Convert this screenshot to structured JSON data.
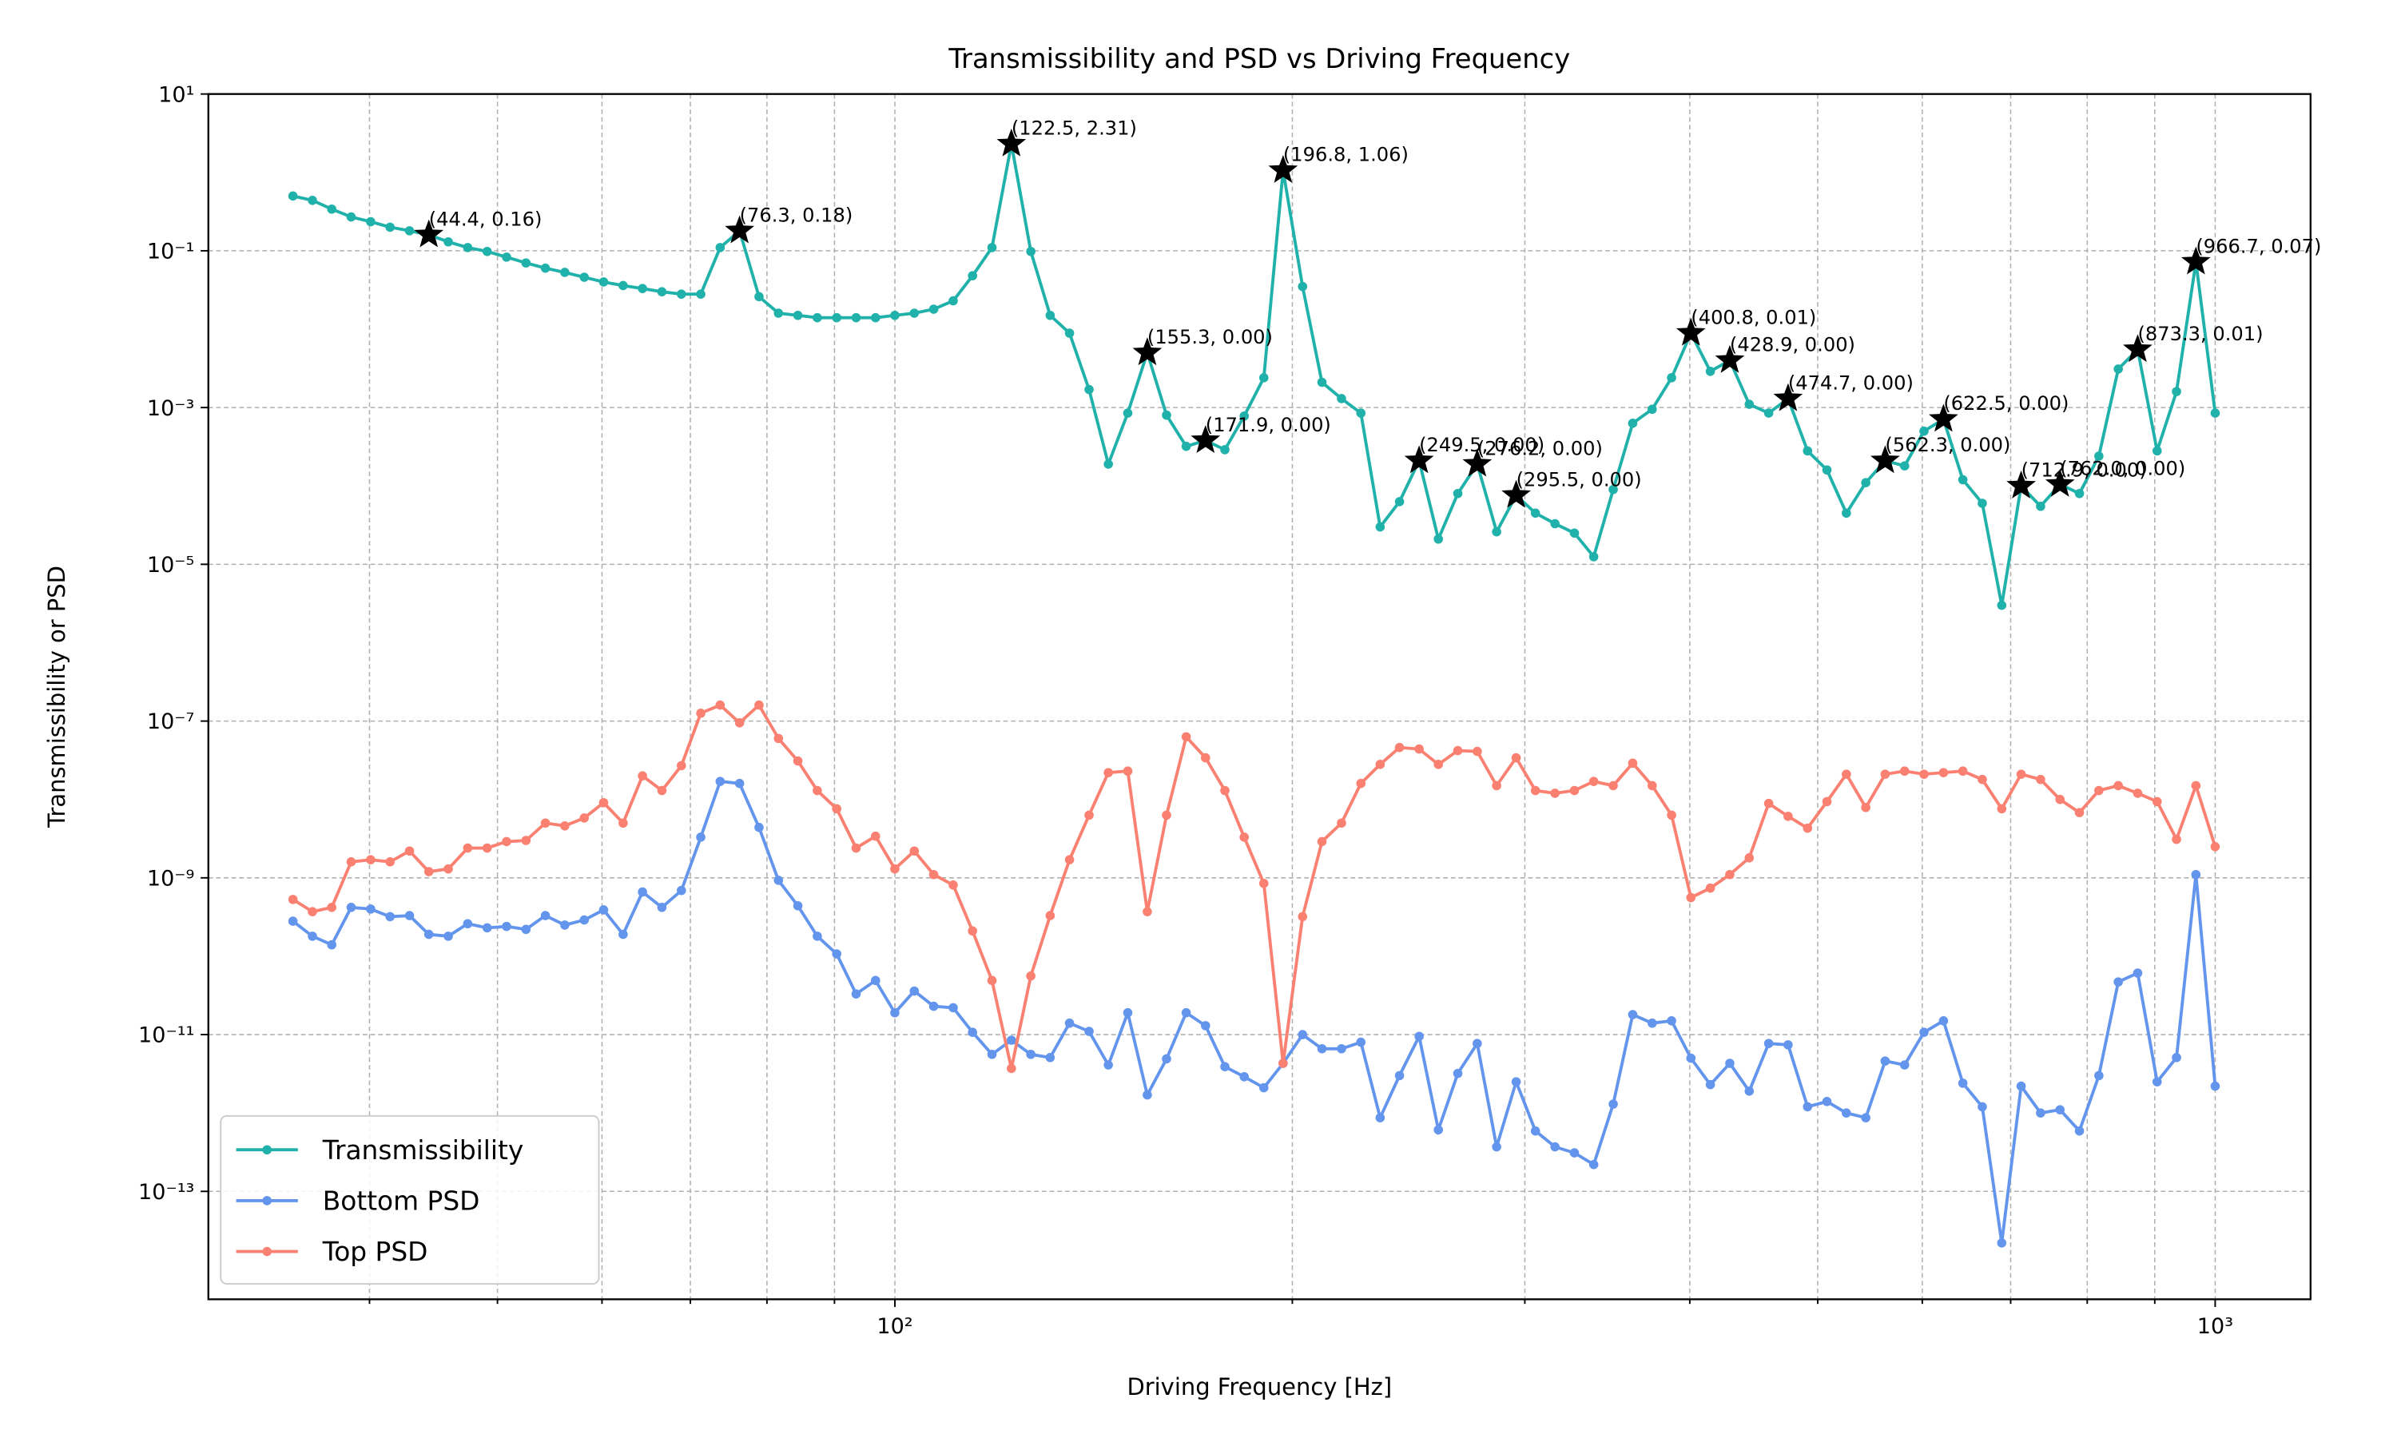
{
  "chart_data": {
    "type": "line",
    "title": "Transmissibility and PSD vs Driving Frequency",
    "xlabel": "Driving Frequency [Hz]",
    "ylabel": "Transmissibility or PSD",
    "xscale": "log",
    "yscale": "log",
    "xlim": [
      30.2,
      1181
    ],
    "ylim": [
      4.2e-15,
      10
    ],
    "xticks": [
      {
        "value": 100,
        "label": "10²"
      },
      {
        "value": 1000,
        "label": "10³"
      }
    ],
    "xminorticks": [
      40,
      50,
      60,
      70,
      80,
      90,
      200,
      300,
      400,
      500,
      600,
      700,
      800,
      900
    ],
    "yticks": [
      {
        "value": 10,
        "label": "10¹"
      },
      {
        "value": 0.1,
        "label": "10⁻¹"
      },
      {
        "value": 0.001,
        "label": "10⁻³"
      },
      {
        "value": 1e-05,
        "label": "10⁻⁵"
      },
      {
        "value": 1e-07,
        "label": "10⁻⁷"
      },
      {
        "value": 1e-09,
        "label": "10⁻⁹"
      },
      {
        "value": 1e-11,
        "label": "10⁻¹¹"
      },
      {
        "value": 1e-13,
        "label": "10⁻¹³"
      }
    ],
    "grid": true,
    "legend": "lower left",
    "x": [
      35.0,
      36.21,
      37.45,
      38.74,
      40.08,
      41.46,
      42.89,
      44.36,
      45.89,
      47.47,
      49.11,
      50.8,
      52.55,
      54.36,
      56.23,
      58.17,
      60.17,
      62.25,
      64.39,
      66.61,
      68.91,
      71.28,
      73.73,
      76.27,
      78.9,
      81.62,
      84.43,
      87.34,
      90.35,
      93.46,
      96.68,
      99.99,
      103.44,
      107.0,
      110.7,
      114.5,
      118.45,
      122.53,
      126.75,
      131.1,
      135.6,
      140.3,
      145.1,
      150.1,
      155.3,
      160.6,
      166.2,
      171.9,
      177.8,
      183.9,
      190.3,
      196.8,
      203.6,
      210.6,
      217.9,
      225.4,
      233.1,
      241.1,
      249.5,
      258.0,
      266.9,
      276.1,
      285.6,
      295.5,
      305.6,
      316.2,
      327.1,
      338.3,
      350.0,
      362.1,
      374.6,
      387.5,
      400.8,
      414.6,
      428.9,
      443.7,
      459.0,
      474.8,
      491.2,
      508.1,
      525.6,
      543.7,
      562.4,
      581.8,
      601.8,
      622.6,
      644.0,
      666.2,
      689.2,
      712.9,
      737.5,
      762.9,
      789.2,
      816.4,
      844.5,
      873.6,
      903.7,
      934.8,
      967.0,
      1000.0
    ],
    "series": [
      {
        "name": "Transmissibility",
        "color": "#20b2aa",
        "values": [
          0.5,
          0.44,
          0.34,
          0.27,
          0.235,
          0.2,
          0.18,
          0.16,
          0.13,
          0.11,
          0.098,
          0.083,
          0.07,
          0.06,
          0.053,
          0.046,
          0.04,
          0.036,
          0.033,
          0.03,
          0.028,
          0.028,
          0.11,
          0.18,
          0.026,
          0.016,
          0.015,
          0.014,
          0.014,
          0.014,
          0.014,
          0.015,
          0.016,
          0.018,
          0.023,
          0.048,
          0.11,
          2.31,
          0.098,
          0.015,
          0.0089,
          0.0017,
          0.00019,
          0.00085,
          0.005,
          0.0008,
          0.00032,
          0.00038,
          0.00029,
          0.00078,
          0.0024,
          1.06,
          0.035,
          0.0021,
          0.0013,
          0.00085,
          3e-05,
          6.3e-05,
          0.00021,
          2.1e-05,
          8e-05,
          0.00019,
          2.6e-05,
          7.6e-05,
          4.5e-05,
          3.3e-05,
          2.5e-05,
          1.25e-05,
          9e-05,
          0.00063,
          0.00095,
          0.0024,
          0.0089,
          0.0029,
          0.004,
          0.0011,
          0.00085,
          0.0013,
          0.00028,
          0.00016,
          4.5e-05,
          0.00011,
          0.00021,
          0.00018,
          0.0005,
          0.00071,
          0.00012,
          6e-05,
          3e-06,
          0.0001,
          5.5e-05,
          0.000105,
          8e-05,
          0.00024,
          0.0031,
          0.0055,
          0.00028,
          0.0016,
          0.072,
          0.00085
        ]
      },
      {
        "name": "Bottom PSD",
        "color": "#6495ed",
        "values": [
          2.8e-10,
          1.8e-10,
          1.4e-10,
          4.2e-10,
          4e-10,
          3.2e-10,
          3.3e-10,
          1.9e-10,
          1.8e-10,
          2.6e-10,
          2.3e-10,
          2.4e-10,
          2.2e-10,
          3.3e-10,
          2.5e-10,
          2.9e-10,
          3.9e-10,
          1.9e-10,
          6.6e-10,
          4.2e-10,
          6.9e-10,
          3.3e-09,
          1.7e-08,
          1.6e-08,
          4.4e-09,
          9.3e-10,
          4.4e-10,
          1.8e-10,
          1.07e-10,
          3.3e-11,
          4.9e-11,
          1.9e-11,
          3.6e-11,
          2.3e-11,
          2.2e-11,
          1.07e-11,
          5.6e-12,
          8.5e-12,
          5.6e-12,
          5.1e-12,
          1.4e-11,
          1.1e-11,
          4.1e-12,
          1.9e-11,
          1.7e-12,
          4.9e-12,
          1.9e-11,
          1.3e-11,
          3.9e-12,
          2.9e-12,
          2.1e-12,
          4.3e-12,
          1e-11,
          6.6e-12,
          6.6e-12,
          8e-12,
          8.7e-13,
          3e-12,
          9.5e-12,
          6.1e-13,
          3.2e-12,
          7.7e-12,
          3.7e-13,
          2.5e-12,
          5.9e-13,
          3.7e-13,
          3.1e-13,
          2.2e-13,
          1.3e-12,
          1.8e-11,
          1.4e-11,
          1.5e-11,
          5e-12,
          2.3e-12,
          4.3e-12,
          1.9e-12,
          7.7e-12,
          7.4e-12,
          1.2e-12,
          1.4e-12,
          1e-12,
          8.7e-13,
          4.6e-12,
          4.1e-12,
          1.07e-11,
          1.5e-11,
          2.4e-12,
          1.2e-12,
          2.2e-14,
          2.2e-12,
          1e-12,
          1.1e-12,
          5.9e-13,
          3e-12,
          4.7e-11,
          6.1e-11,
          2.5e-12,
          5.1e-12,
          1.1e-09,
          2.2e-12
        ]
      },
      {
        "name": "Top PSD",
        "color": "#fa8072",
        "values": [
          5.3e-10,
          3.7e-10,
          4.2e-10,
          1.6e-09,
          1.7e-09,
          1.6e-09,
          2.2e-09,
          1.2e-09,
          1.3e-09,
          2.4e-09,
          2.4e-09,
          2.9e-09,
          3e-09,
          5e-09,
          4.6e-09,
          5.8e-09,
          9.1e-09,
          5e-09,
          2e-08,
          1.3e-08,
          2.7e-08,
          1.26e-07,
          1.6e-07,
          9.5e-08,
          1.6e-07,
          6e-08,
          3.1e-08,
          1.3e-08,
          7.6e-09,
          2.4e-09,
          3.4e-09,
          1.3e-09,
          2.2e-09,
          1.1e-09,
          8.1e-10,
          2.1e-10,
          4.9e-11,
          3.7e-12,
          5.6e-11,
          3.3e-10,
          1.7e-09,
          6.3e-09,
          2.2e-08,
          2.3e-08,
          3.7e-10,
          6.3e-09,
          6.3e-08,
          3.4e-08,
          1.3e-08,
          3.3e-09,
          8.5e-10,
          4.3e-12,
          3.2e-10,
          2.9e-09,
          5e-09,
          1.6e-08,
          2.8e-08,
          4.6e-08,
          4.4e-08,
          2.8e-08,
          4.2e-08,
          4.1e-08,
          1.5e-08,
          3.4e-08,
          1.3e-08,
          1.2e-08,
          1.3e-08,
          1.7e-08,
          1.5e-08,
          2.9e-08,
          1.5e-08,
          6.3e-09,
          5.6e-10,
          7.4e-10,
          1.1e-09,
          1.8e-09,
          8.9e-09,
          6.1e-09,
          4.3e-09,
          9.4e-09,
          2.1e-08,
          7.9e-09,
          2.1e-08,
          2.3e-08,
          2.1e-08,
          2.2e-08,
          2.3e-08,
          1.8e-08,
          7.6e-09,
          2.1e-08,
          1.8e-08,
          1e-08,
          6.8e-09,
          1.3e-08,
          1.5e-08,
          1.2e-08,
          9.4e-09,
          3.1e-09,
          1.5e-08,
          2.5e-09
        ]
      }
    ],
    "annotations": [
      {
        "x": 44.4,
        "label": "(44.4, 0.16)"
      },
      {
        "x": 76.3,
        "label": "(76.3, 0.18)"
      },
      {
        "x": 122.5,
        "label": "(122.5, 2.31)"
      },
      {
        "x": 155.3,
        "label": "(155.3, 0.00)"
      },
      {
        "x": 171.9,
        "label": "(171.9, 0.00)"
      },
      {
        "x": 196.8,
        "label": "(196.8, 1.06)"
      },
      {
        "x": 249.5,
        "label": "(249.5, 0.00)"
      },
      {
        "x": 276.2,
        "label": "(276.2, 0.00)"
      },
      {
        "x": 295.5,
        "label": "(295.5, 0.00)"
      },
      {
        "x": 400.8,
        "label": "(400.8, 0.01)"
      },
      {
        "x": 428.9,
        "label": "(428.9, 0.00)"
      },
      {
        "x": 474.7,
        "label": "(474.7, 0.00)"
      },
      {
        "x": 562.3,
        "label": "(562.3, 0.00)"
      },
      {
        "x": 622.5,
        "label": "(622.5, 0.00)"
      },
      {
        "x": 712.9,
        "label": "(712.9, 0.00)"
      },
      {
        "x": 762.0,
        "label": "(762.0, 0.00)"
      },
      {
        "x": 873.3,
        "label": "(873.3, 0.01)"
      },
      {
        "x": 966.7,
        "label": "(966.7, 0.07)"
      }
    ]
  }
}
